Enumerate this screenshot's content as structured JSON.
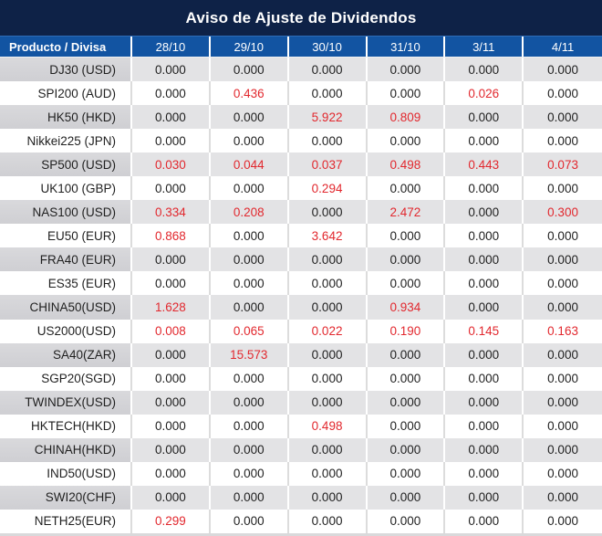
{
  "title": "Aviso de Ajuste de Dividendos",
  "table": {
    "header": [
      "Producto / Divisa",
      "28/10",
      "29/10",
      "30/10",
      "31/10",
      "3/11",
      "4/11"
    ],
    "rows": [
      {
        "product": "DJ30 (USD)",
        "values": [
          "0.000",
          "0.000",
          "0.000",
          "0.000",
          "0.000",
          "0.000"
        ]
      },
      {
        "product": "SPI200 (AUD)",
        "values": [
          "0.000",
          "0.436",
          "0.000",
          "0.000",
          "0.026",
          "0.000"
        ]
      },
      {
        "product": "HK50 (HKD)",
        "values": [
          "0.000",
          "0.000",
          "5.922",
          "0.809",
          "0.000",
          "0.000"
        ]
      },
      {
        "product": "Nikkei225 (JPN)",
        "values": [
          "0.000",
          "0.000",
          "0.000",
          "0.000",
          "0.000",
          "0.000"
        ]
      },
      {
        "product": "SP500 (USD)",
        "values": [
          "0.030",
          "0.044",
          "0.037",
          "0.498",
          "0.443",
          "0.073"
        ]
      },
      {
        "product": "UK100 (GBP)",
        "values": [
          "0.000",
          "0.000",
          "0.294",
          "0.000",
          "0.000",
          "0.000"
        ]
      },
      {
        "product": "NAS100 (USD)",
        "values": [
          "0.334",
          "0.208",
          "0.000",
          "2.472",
          "0.000",
          "0.300"
        ]
      },
      {
        "product": "EU50 (EUR)",
        "values": [
          "0.868",
          "0.000",
          "3.642",
          "0.000",
          "0.000",
          "0.000"
        ]
      },
      {
        "product": "FRA40 (EUR)",
        "values": [
          "0.000",
          "0.000",
          "0.000",
          "0.000",
          "0.000",
          "0.000"
        ]
      },
      {
        "product": "ES35 (EUR)",
        "values": [
          "0.000",
          "0.000",
          "0.000",
          "0.000",
          "0.000",
          "0.000"
        ]
      },
      {
        "product": "CHINA50(USD)",
        "values": [
          "1.628",
          "0.000",
          "0.000",
          "0.934",
          "0.000",
          "0.000"
        ]
      },
      {
        "product": "US2000(USD)",
        "values": [
          "0.008",
          "0.065",
          "0.022",
          "0.190",
          "0.145",
          "0.163"
        ]
      },
      {
        "product": "SA40(ZAR)",
        "values": [
          "0.000",
          "15.573",
          "0.000",
          "0.000",
          "0.000",
          "0.000"
        ]
      },
      {
        "product": "SGP20(SGD)",
        "values": [
          "0.000",
          "0.000",
          "0.000",
          "0.000",
          "0.000",
          "0.000"
        ]
      },
      {
        "product": "TWINDEX(USD)",
        "values": [
          "0.000",
          "0.000",
          "0.000",
          "0.000",
          "0.000",
          "0.000"
        ]
      },
      {
        "product": "HKTECH(HKD)",
        "values": [
          "0.000",
          "0.000",
          "0.498",
          "0.000",
          "0.000",
          "0.000"
        ]
      },
      {
        "product": "CHINAH(HKD)",
        "values": [
          "0.000",
          "0.000",
          "0.000",
          "0.000",
          "0.000",
          "0.000"
        ]
      },
      {
        "product": "IND50(USD)",
        "values": [
          "0.000",
          "0.000",
          "0.000",
          "0.000",
          "0.000",
          "0.000"
        ]
      },
      {
        "product": "SWI20(CHF)",
        "values": [
          "0.000",
          "0.000",
          "0.000",
          "0.000",
          "0.000",
          "0.000"
        ]
      },
      {
        "product": "NETH25(EUR)",
        "values": [
          "0.299",
          "0.000",
          "0.000",
          "0.000",
          "0.000",
          "0.000"
        ]
      }
    ],
    "highlight_rule": "non-zero adjustment values are rendered in red"
  },
  "colors": {
    "title_bar_bg": "#0e2247",
    "header_bg": "#1254a2",
    "header_text": "#ffffff",
    "alt_row_bg": "#e3e3e5",
    "alt_row_product_bg": "#d3d3d7",
    "row_bg": "#ffffff",
    "value_red": "#e2282e",
    "text_dark": "#1f1f1f"
  }
}
